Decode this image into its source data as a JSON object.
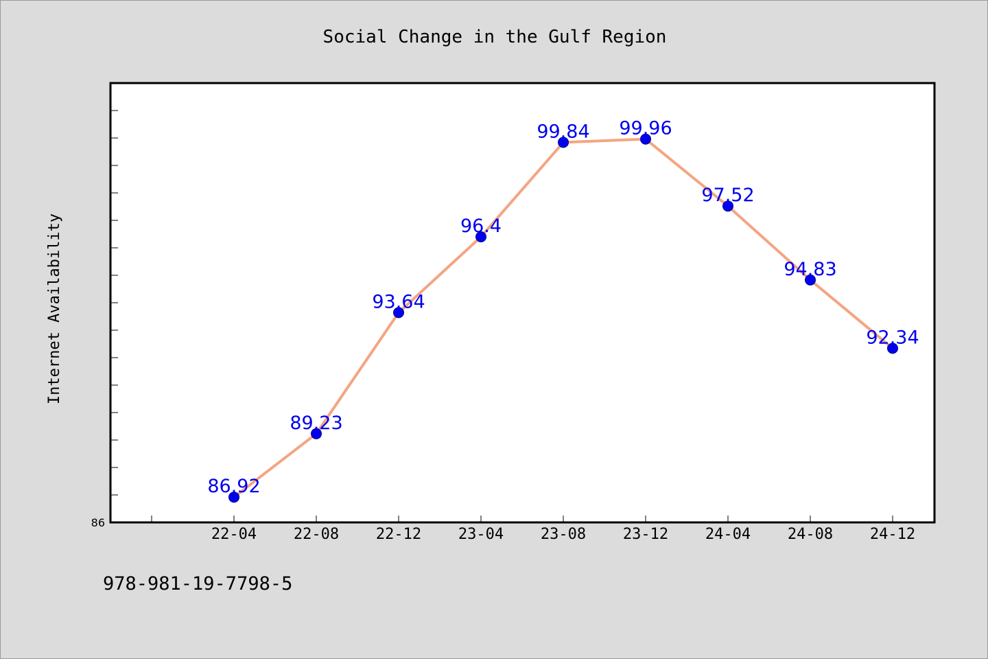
{
  "chart_data": {
    "type": "line",
    "title": "Social Change in the Gulf Region",
    "xlabel": "",
    "ylabel": "Internet Availability",
    "categories": [
      "22-04",
      "22-08",
      "22-12",
      "23-04",
      "23-08",
      "23-12",
      "24-04",
      "24-08",
      "24-12"
    ],
    "series": [
      {
        "values": [
          86.92,
          89.23,
          93.64,
          96.4,
          99.84,
          99.96,
          97.52,
          94.83,
          92.34
        ],
        "labels": [
          "86.92",
          "89.23",
          "93.64",
          "96.4",
          "99.84",
          "99.96",
          "97.52",
          "94.83",
          "92.34"
        ],
        "line_color": "#f4a582",
        "marker_color": "#0000ee",
        "label_color": "#0000ee"
      }
    ],
    "ylim": [
      86,
      102
    ],
    "y_tick_labels": [
      "86"
    ],
    "grid": false,
    "legend": "none"
  },
  "footer": {
    "isbn": "978-981-19-7798-5"
  },
  "colors": {
    "background": "#dcdcdc",
    "plot_background": "#ffffff",
    "axis": "#000000"
  }
}
